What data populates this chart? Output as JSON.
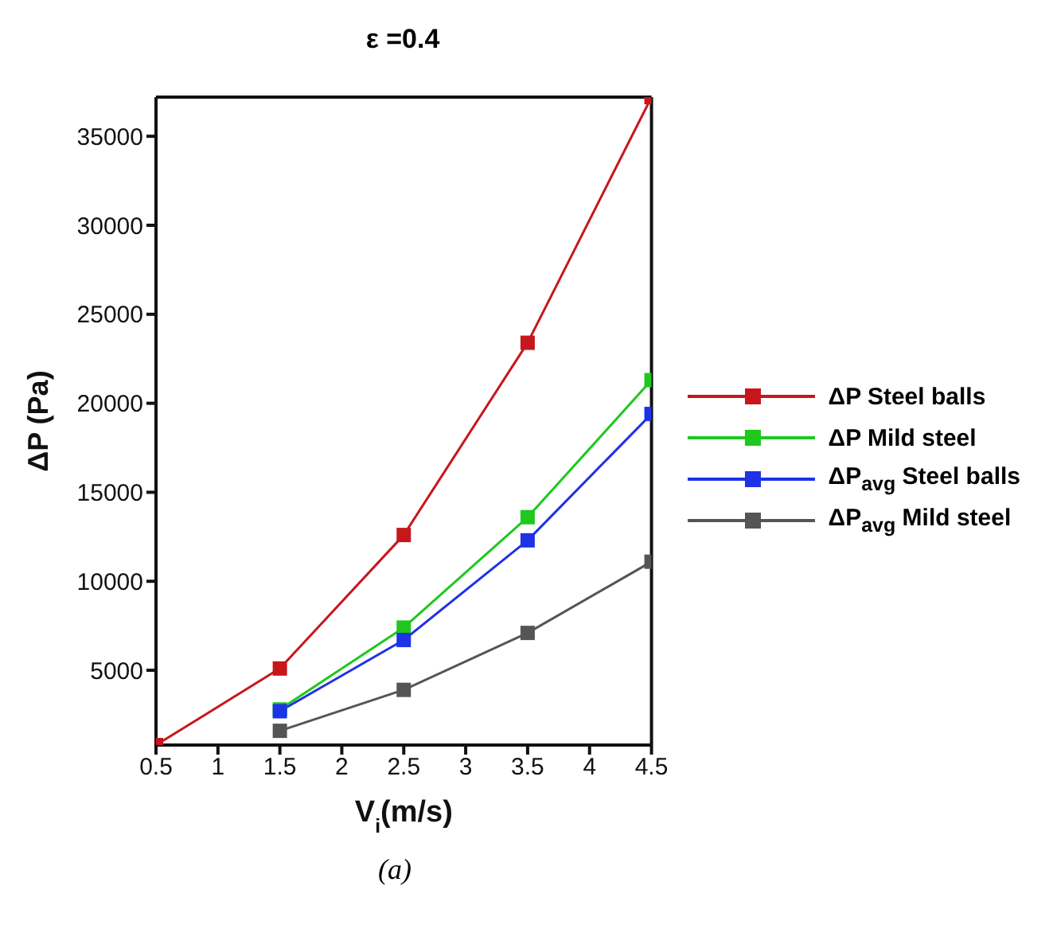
{
  "chart_data": {
    "type": "line",
    "title": "ε =0.4",
    "xlabel": "V$_{i}$(m/s)",
    "ylabel": "ΔP (Pa)",
    "annotations": [
      "(a)"
    ],
    "x": [
      0.5,
      1.5,
      2.5,
      3.5,
      4.5
    ],
    "series": [
      {
        "name": "ΔP Steel balls",
        "color": "#c8161d",
        "values": [
          800,
          5100,
          12600,
          23400,
          37200
        ]
      },
      {
        "name": "ΔP Mild steel",
        "color": "#1ec81e",
        "values": [
          null,
          2800,
          7400,
          13600,
          21300
        ]
      },
      {
        "name": "ΔP$_{avg}$ Steel balls",
        "color": "#1e32e6",
        "values": [
          null,
          2700,
          6700,
          12300,
          19400
        ]
      },
      {
        "name": "ΔP$_{avg}$ Mild steel",
        "color": "#555555",
        "values": [
          null,
          1600,
          3900,
          7100,
          11100
        ]
      }
    ],
    "xlim": [
      0.5,
      4.5
    ],
    "xticks": [
      0.5,
      1,
      1.5,
      2,
      2.5,
      3,
      3.5,
      4,
      4.5
    ],
    "ylim": [
      800,
      37200
    ],
    "yticks": [
      5000,
      10000,
      15000,
      20000,
      25000,
      30000,
      35000
    ],
    "grid": false,
    "legend": "right",
    "marker": "square",
    "line_style": "solid"
  }
}
